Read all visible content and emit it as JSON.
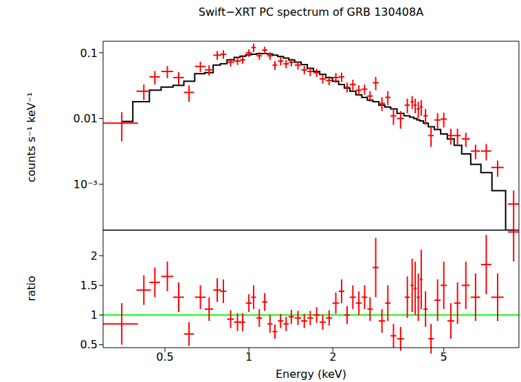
{
  "chart_data": [
    {
      "type": "scatter",
      "title": "Swift−XRT PC spectrum of GRB 130408A",
      "y_label": "counts s⁻¹ keV⁻¹",
      "log": true,
      "xlim": [
        0.3,
        9.3
      ],
      "xticks": [
        0.5,
        1,
        2,
        5
      ],
      "ylim": [
        0.0002,
        0.15
      ],
      "yticks": [
        {
          "value": 0.001,
          "label": "10⁻³"
        },
        0.01,
        0.1
      ],
      "tick_labels": "y",
      "color": "#ff0000",
      "x": [
        0.35,
        0.42,
        0.46,
        0.51,
        0.56,
        0.61,
        0.67,
        0.72,
        0.77,
        0.81,
        0.86,
        0.91,
        0.95,
        1.0,
        1.04,
        1.09,
        1.14,
        1.19,
        1.24,
        1.3,
        1.36,
        1.42,
        1.5,
        1.58,
        1.66,
        1.75,
        1.84,
        1.94,
        2.05,
        2.15,
        2.25,
        2.36,
        2.48,
        2.6,
        2.72,
        2.85,
        3.0,
        3.15,
        3.3,
        3.5,
        3.7,
        3.85,
        3.95,
        4.05,
        4.15,
        4.3,
        4.5,
        4.75,
        5.0,
        5.3,
        5.6,
        6.0,
        6.5,
        7.1,
        7.8,
        8.9
      ],
      "x_err": [
        0.05,
        0.025,
        0.02,
        0.025,
        0.025,
        0.025,
        0.03,
        0.025,
        0.025,
        0.02,
        0.025,
        0.025,
        0.02,
        0.025,
        0.02,
        0.025,
        0.025,
        0.025,
        0.025,
        0.03,
        0.03,
        0.03,
        0.04,
        0.04,
        0.04,
        0.045,
        0.045,
        0.05,
        0.055,
        0.05,
        0.05,
        0.06,
        0.06,
        0.06,
        0.06,
        0.07,
        0.08,
        0.07,
        0.08,
        0.1,
        0.08,
        0.05,
        0.05,
        0.05,
        0.05,
        0.08,
        0.1,
        0.12,
        0.13,
        0.15,
        0.15,
        0.2,
        0.25,
        0.3,
        0.4,
        0.4
      ],
      "values": [
        0.0085,
        0.026,
        0.043,
        0.052,
        0.042,
        0.025,
        0.062,
        0.055,
        0.092,
        0.095,
        0.072,
        0.075,
        0.078,
        0.1,
        0.12,
        0.09,
        0.11,
        0.09,
        0.065,
        0.075,
        0.068,
        0.072,
        0.065,
        0.055,
        0.052,
        0.05,
        0.04,
        0.038,
        0.042,
        0.043,
        0.03,
        0.033,
        0.027,
        0.028,
        0.022,
        0.035,
        0.017,
        0.021,
        0.011,
        0.01,
        0.016,
        0.018,
        0.016,
        0.014,
        0.015,
        0.011,
        0.0055,
        0.0095,
        0.0098,
        0.0055,
        0.0055,
        0.0049,
        0.0032,
        0.0032,
        0.0018,
        0.0005
      ],
      "errors": [
        0.004,
        0.007,
        0.01,
        0.011,
        0.009,
        0.007,
        0.011,
        0.01,
        0.014,
        0.014,
        0.01,
        0.01,
        0.01,
        0.013,
        0.018,
        0.012,
        0.014,
        0.012,
        0.01,
        0.011,
        0.01,
        0.01,
        0.009,
        0.008,
        0.008,
        0.007,
        0.006,
        0.006,
        0.007,
        0.007,
        0.005,
        0.006,
        0.005,
        0.005,
        0.004,
        0.008,
        0.004,
        0.005,
        0.003,
        0.003,
        0.004,
        0.004,
        0.004,
        0.004,
        0.004,
        0.003,
        0.0018,
        0.0025,
        0.0025,
        0.0015,
        0.0015,
        0.0012,
        0.0008,
        0.0009,
        0.0005,
        0.0003
      ],
      "model": {
        "type": "line",
        "color": "#000000",
        "line_style": "step",
        "values": [
          0.009,
          0.018,
          0.027,
          0.03,
          0.032,
          0.037,
          0.048,
          0.05,
          0.065,
          0.068,
          0.078,
          0.085,
          0.089,
          0.093,
          0.095,
          0.097,
          0.097,
          0.096,
          0.092,
          0.088,
          0.083,
          0.078,
          0.072,
          0.066,
          0.058,
          0.052,
          0.047,
          0.042,
          0.037,
          0.033,
          0.029,
          0.026,
          0.023,
          0.021,
          0.019,
          0.018,
          0.016,
          0.015,
          0.014,
          0.012,
          0.011,
          0.0105,
          0.01,
          0.0095,
          0.0092,
          0.0085,
          0.0075,
          0.0068,
          0.0058,
          0.0049,
          0.0039,
          0.0029,
          0.002,
          0.0015,
          0.0008,
          0.0002
        ]
      }
    },
    {
      "type": "scatter",
      "y_label": "ratio",
      "x_label": "Energy (keV)",
      "log": "x",
      "xlim": [
        0.3,
        9.3
      ],
      "xticks": [
        0.5,
        1,
        2,
        5
      ],
      "ylim": [
        0.45,
        2.43
      ],
      "yticks": [
        0.5,
        1,
        1.5,
        2
      ],
      "color": "#ff0000",
      "x": [
        0.35,
        0.42,
        0.46,
        0.51,
        0.56,
        0.61,
        0.67,
        0.72,
        0.77,
        0.81,
        0.86,
        0.91,
        0.95,
        1.0,
        1.04,
        1.09,
        1.14,
        1.19,
        1.24,
        1.3,
        1.36,
        1.42,
        1.5,
        1.58,
        1.66,
        1.75,
        1.84,
        1.94,
        2.05,
        2.15,
        2.25,
        2.36,
        2.48,
        2.6,
        2.72,
        2.85,
        3.0,
        3.15,
        3.3,
        3.5,
        3.7,
        3.85,
        3.95,
        4.05,
        4.15,
        4.3,
        4.5,
        4.75,
        5.0,
        5.3,
        5.6,
        6.0,
        6.5,
        7.1,
        7.8,
        8.9
      ],
      "x_err": [
        0.05,
        0.025,
        0.02,
        0.025,
        0.025,
        0.025,
        0.03,
        0.025,
        0.025,
        0.02,
        0.025,
        0.025,
        0.02,
        0.025,
        0.02,
        0.025,
        0.025,
        0.025,
        0.025,
        0.03,
        0.03,
        0.03,
        0.04,
        0.04,
        0.04,
        0.045,
        0.045,
        0.05,
        0.055,
        0.05,
        0.05,
        0.06,
        0.06,
        0.06,
        0.06,
        0.07,
        0.08,
        0.07,
        0.08,
        0.1,
        0.08,
        0.05,
        0.05,
        0.05,
        0.05,
        0.08,
        0.1,
        0.12,
        0.13,
        0.15,
        0.15,
        0.2,
        0.25,
        0.3,
        0.4,
        0.4
      ],
      "values": [
        0.85,
        1.42,
        1.55,
        1.65,
        1.3,
        0.68,
        1.3,
        1.1,
        1.42,
        1.4,
        0.93,
        0.88,
        0.88,
        1.2,
        1.3,
        0.95,
        1.22,
        0.85,
        0.72,
        0.9,
        0.85,
        0.97,
        0.95,
        0.9,
        0.95,
        1.0,
        0.88,
        0.95,
        1.2,
        1.4,
        1.0,
        1.3,
        1.2,
        1.3,
        1.1,
        1.8,
        0.9,
        1.2,
        0.65,
        0.6,
        1.3,
        1.5,
        1.45,
        1.3,
        1.6,
        1.1,
        0.6,
        1.25,
        1.5,
        0.9,
        1.2,
        1.5,
        1.3,
        1.85,
        1.3,
        2.4
      ],
      "errors": [
        0.35,
        0.25,
        0.25,
        0.25,
        0.25,
        0.2,
        0.2,
        0.2,
        0.2,
        0.2,
        0.15,
        0.15,
        0.15,
        0.15,
        0.2,
        0.15,
        0.15,
        0.15,
        0.12,
        0.12,
        0.12,
        0.12,
        0.12,
        0.12,
        0.12,
        0.13,
        0.13,
        0.13,
        0.18,
        0.2,
        0.15,
        0.2,
        0.2,
        0.2,
        0.2,
        0.5,
        0.2,
        0.3,
        0.2,
        0.2,
        0.35,
        0.45,
        0.45,
        0.4,
        0.5,
        0.3,
        0.25,
        0.35,
        0.4,
        0.3,
        0.35,
        0.4,
        0.4,
        0.5,
        0.4,
        0.5
      ],
      "reference_line": {
        "value": 1,
        "color": "#00ff00"
      }
    }
  ]
}
